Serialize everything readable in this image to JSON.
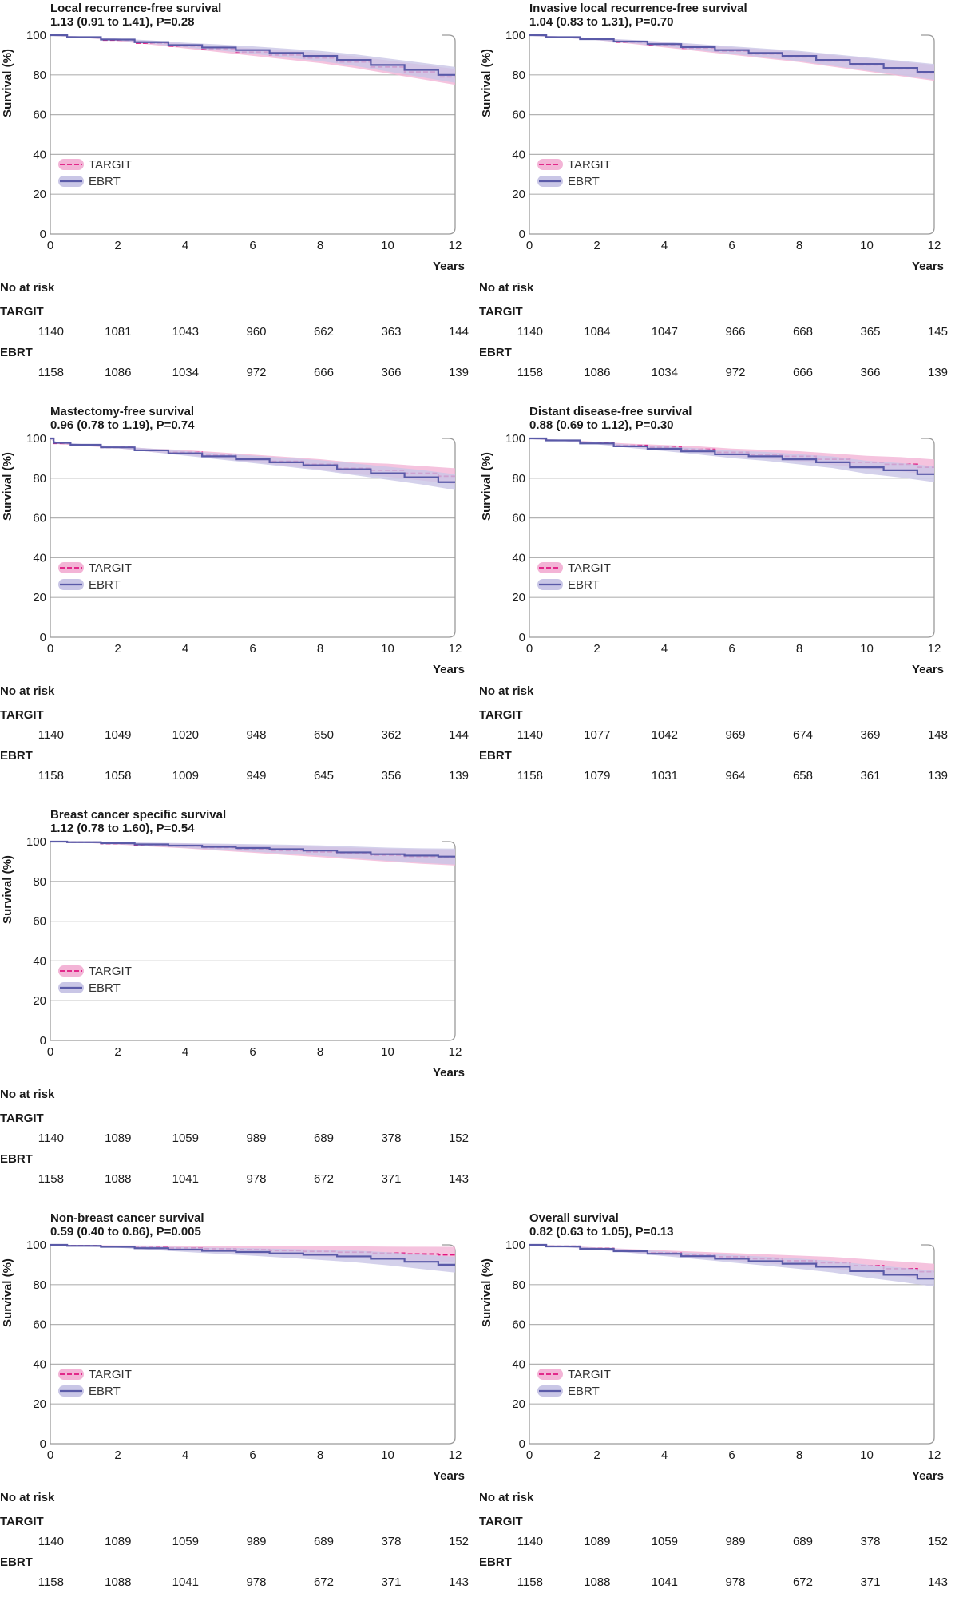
{
  "x_label": "Years",
  "y_label": "Survival (%)",
  "risk_header": "No at risk",
  "x_ticks": [
    0,
    2,
    4,
    6,
    8,
    10,
    12
  ],
  "y_ticks": [
    0,
    20,
    40,
    60,
    80,
    100
  ],
  "colors": {
    "targit": "#e0157f",
    "targit_band": "#f3b4d6",
    "ebrt": "#5a5aa8",
    "ebrt_band": "#c9c6e6",
    "grid": "#b3b3b3",
    "axis": "#9a9a9a"
  },
  "chart_data": [
    {
      "type": "line",
      "title": "Local recurrence-free survival",
      "subtitle": "1.13 (0.91 to 1.41), P=0.28",
      "xlabel": "Years",
      "ylabel": "Survival (%)",
      "xlim": [
        0,
        12
      ],
      "ylim": [
        0,
        100
      ],
      "legend_position": "lower-left",
      "series": [
        {
          "name": "TARGIT",
          "style": "dashed",
          "x": [
            0,
            1,
            2,
            3,
            4,
            5,
            6,
            7,
            8,
            9,
            10,
            11,
            12
          ],
          "y": [
            100,
            99,
            97.5,
            96,
            94.5,
            93,
            91.5,
            90,
            88.5,
            86.5,
            84,
            81.5,
            79
          ]
        },
        {
          "name": "EBRT",
          "style": "solid",
          "x": [
            0,
            1,
            2,
            3,
            4,
            5,
            6,
            7,
            8,
            9,
            10,
            11,
            12
          ],
          "y": [
            100,
            99,
            97.8,
            96.5,
            95,
            93.8,
            92.5,
            91,
            89.5,
            87.5,
            85,
            82.5,
            80
          ]
        }
      ],
      "risk_table": [
        {
          "group": "TARGIT",
          "values": [
            1140,
            1081,
            1043,
            960,
            662,
            363,
            144
          ]
        },
        {
          "group": "EBRT",
          "values": [
            1158,
            1086,
            1034,
            972,
            666,
            366,
            139
          ]
        }
      ]
    },
    {
      "type": "line",
      "title": "Invasive local recurrence-free survival",
      "subtitle": "1.04 (0.83 to 1.31), P=0.70",
      "xlabel": "Years",
      "ylabel": "Survival (%)",
      "xlim": [
        0,
        12
      ],
      "ylim": [
        0,
        100
      ],
      "legend_position": "lower-left",
      "series": [
        {
          "name": "TARGIT",
          "style": "dashed",
          "x": [
            0,
            1,
            2,
            3,
            4,
            5,
            6,
            7,
            8,
            9,
            10,
            11,
            12
          ],
          "y": [
            100,
            99,
            98,
            96.5,
            95,
            93.5,
            92,
            90.5,
            89,
            87,
            85,
            83,
            81
          ]
        },
        {
          "name": "EBRT",
          "style": "solid",
          "x": [
            0,
            1,
            2,
            3,
            4,
            5,
            6,
            7,
            8,
            9,
            10,
            11,
            12
          ],
          "y": [
            100,
            99,
            98,
            96.8,
            95.5,
            94,
            92.5,
            91,
            89.5,
            87.5,
            85.5,
            83.5,
            81.5
          ]
        }
      ],
      "risk_table": [
        {
          "group": "TARGIT",
          "values": [
            1140,
            1084,
            1047,
            966,
            668,
            365,
            145
          ]
        },
        {
          "group": "EBRT",
          "values": [
            1158,
            1086,
            1034,
            972,
            666,
            366,
            139
          ]
        }
      ]
    },
    {
      "type": "line",
      "title": "Mastectomy-free survival",
      "subtitle": "0.96 (0.78 to 1.19), P=0.74",
      "xlabel": "Years",
      "ylabel": "Survival (%)",
      "xlim": [
        0,
        12
      ],
      "ylim": [
        0,
        100
      ],
      "legend_position": "lower-left",
      "series": [
        {
          "name": "TARGIT",
          "style": "dashed",
          "x": [
            0,
            0.2,
            1,
            2,
            3,
            4,
            5,
            6,
            7,
            8,
            9,
            10,
            11,
            12
          ],
          "y": [
            100,
            97.5,
            96.5,
            95.5,
            94,
            93,
            91.5,
            90,
            88.5,
            87,
            85,
            84,
            82.5,
            81
          ]
        },
        {
          "name": "EBRT",
          "style": "solid",
          "x": [
            0,
            0.2,
            1,
            2,
            3,
            4,
            5,
            6,
            7,
            8,
            9,
            10,
            11,
            12
          ],
          "y": [
            100,
            97.8,
            96.8,
            95.5,
            94,
            92.5,
            91,
            89.5,
            88,
            86.5,
            84.5,
            82.5,
            80.5,
            78
          ]
        }
      ],
      "risk_table": [
        {
          "group": "TARGIT",
          "values": [
            1140,
            1049,
            1020,
            948,
            650,
            362,
            144
          ]
        },
        {
          "group": "EBRT",
          "values": [
            1158,
            1058,
            1009,
            949,
            645,
            356,
            139
          ]
        }
      ]
    },
    {
      "type": "line",
      "title": "Distant disease-free survival",
      "subtitle": "0.88 (0.69 to 1.12), P=0.30",
      "xlabel": "Years",
      "ylabel": "Survival (%)",
      "xlim": [
        0,
        12
      ],
      "ylim": [
        0,
        100
      ],
      "legend_position": "lower-left",
      "series": [
        {
          "name": "TARGIT",
          "style": "dashed",
          "x": [
            0,
            1,
            2,
            3,
            4,
            5,
            6,
            7,
            8,
            9,
            10,
            11,
            12
          ],
          "y": [
            100,
            99,
            97.8,
            96.5,
            95.5,
            94.5,
            93,
            92,
            91,
            89.5,
            88,
            87,
            85.5
          ]
        },
        {
          "name": "EBRT",
          "style": "solid",
          "x": [
            0,
            1,
            2,
            3,
            4,
            5,
            6,
            7,
            8,
            9,
            10,
            11,
            12
          ],
          "y": [
            100,
            99,
            97.5,
            96,
            94.8,
            93.5,
            92,
            91,
            89.5,
            88,
            85.5,
            84,
            82
          ]
        }
      ],
      "risk_table": [
        {
          "group": "TARGIT",
          "values": [
            1140,
            1077,
            1042,
            969,
            674,
            369,
            148
          ]
        },
        {
          "group": "EBRT",
          "values": [
            1158,
            1079,
            1031,
            964,
            658,
            361,
            139
          ]
        }
      ]
    },
    {
      "type": "line",
      "title": "Breast cancer specific survival",
      "subtitle": "1.12 (0.78 to 1.60), P=0.54",
      "xlabel": "Years",
      "ylabel": "Survival (%)",
      "xlim": [
        0,
        12
      ],
      "ylim": [
        0,
        100
      ],
      "legend_position": "lower-left",
      "series": [
        {
          "name": "TARGIT",
          "style": "dashed",
          "x": [
            0,
            1,
            2,
            3,
            4,
            5,
            6,
            7,
            8,
            9,
            10,
            11,
            12
          ],
          "y": [
            100,
            99.7,
            99,
            98.3,
            97.8,
            97,
            96.3,
            95.5,
            94.8,
            94,
            93.2,
            92.5,
            92
          ]
        },
        {
          "name": "EBRT",
          "style": "solid",
          "x": [
            0,
            1,
            2,
            3,
            4,
            5,
            6,
            7,
            8,
            9,
            10,
            11,
            12
          ],
          "y": [
            100,
            99.7,
            99.2,
            98.6,
            98,
            97.4,
            96.8,
            96.2,
            95.5,
            94.6,
            93.7,
            93,
            92.5
          ]
        }
      ],
      "risk_table": [
        {
          "group": "TARGIT",
          "values": [
            1140,
            1089,
            1059,
            989,
            689,
            378,
            152
          ]
        },
        {
          "group": "EBRT",
          "values": [
            1158,
            1088,
            1041,
            978,
            672,
            371,
            143
          ]
        }
      ]
    },
    {
      "type": "line",
      "title": "Non-breast cancer survival",
      "subtitle": "0.59 (0.40 to 0.86), P=0.005",
      "xlabel": "Years",
      "ylabel": "Survival (%)",
      "xlim": [
        0,
        12
      ],
      "ylim": [
        0,
        100
      ],
      "legend_position": "lower-left",
      "series": [
        {
          "name": "TARGIT",
          "style": "dashed",
          "x": [
            0,
            1,
            2,
            3,
            4,
            5,
            6,
            7,
            8,
            9,
            10,
            11,
            12
          ],
          "y": [
            100,
            99.6,
            99.2,
            98.8,
            98.4,
            98,
            97.6,
            97.1,
            96.7,
            96.3,
            95.8,
            95.4,
            95
          ]
        },
        {
          "name": "EBRT",
          "style": "solid",
          "x": [
            0,
            1,
            2,
            3,
            4,
            5,
            6,
            7,
            8,
            9,
            10,
            11,
            12
          ],
          "y": [
            100,
            99.5,
            99,
            98.3,
            97.6,
            97,
            96.4,
            95.7,
            95,
            94.2,
            93,
            91.5,
            90
          ]
        }
      ],
      "risk_table": [
        {
          "group": "TARGIT",
          "values": [
            1140,
            1089,
            1059,
            989,
            689,
            378,
            152
          ]
        },
        {
          "group": "EBRT",
          "values": [
            1158,
            1088,
            1041,
            978,
            672,
            371,
            143
          ]
        }
      ]
    },
    {
      "type": "line",
      "title": "Overall survival",
      "subtitle": "0.82 (0.63 to 1.05), P=0.13",
      "xlabel": "Years",
      "ylabel": "Survival (%)",
      "xlim": [
        0,
        12
      ],
      "ylim": [
        0,
        100
      ],
      "legend_position": "lower-left",
      "series": [
        {
          "name": "TARGIT",
          "style": "dashed",
          "x": [
            0,
            1,
            2,
            3,
            4,
            5,
            6,
            7,
            8,
            9,
            10,
            11,
            12
          ],
          "y": [
            100,
            99.3,
            98.2,
            97,
            96,
            95,
            94,
            93,
            92,
            91,
            89.5,
            88,
            86.5
          ]
        },
        {
          "name": "EBRT",
          "style": "solid",
          "x": [
            0,
            1,
            2,
            3,
            4,
            5,
            6,
            7,
            8,
            9,
            10,
            11,
            12
          ],
          "y": [
            100,
            99.2,
            98,
            96.8,
            95.5,
            94.3,
            93,
            91.8,
            90.5,
            89,
            86.8,
            85,
            83
          ]
        }
      ],
      "risk_table": [
        {
          "group": "TARGIT",
          "values": [
            1140,
            1089,
            1059,
            989,
            689,
            378,
            152
          ]
        },
        {
          "group": "EBRT",
          "values": [
            1158,
            1088,
            1041,
            978,
            672,
            371,
            143
          ]
        }
      ]
    }
  ]
}
